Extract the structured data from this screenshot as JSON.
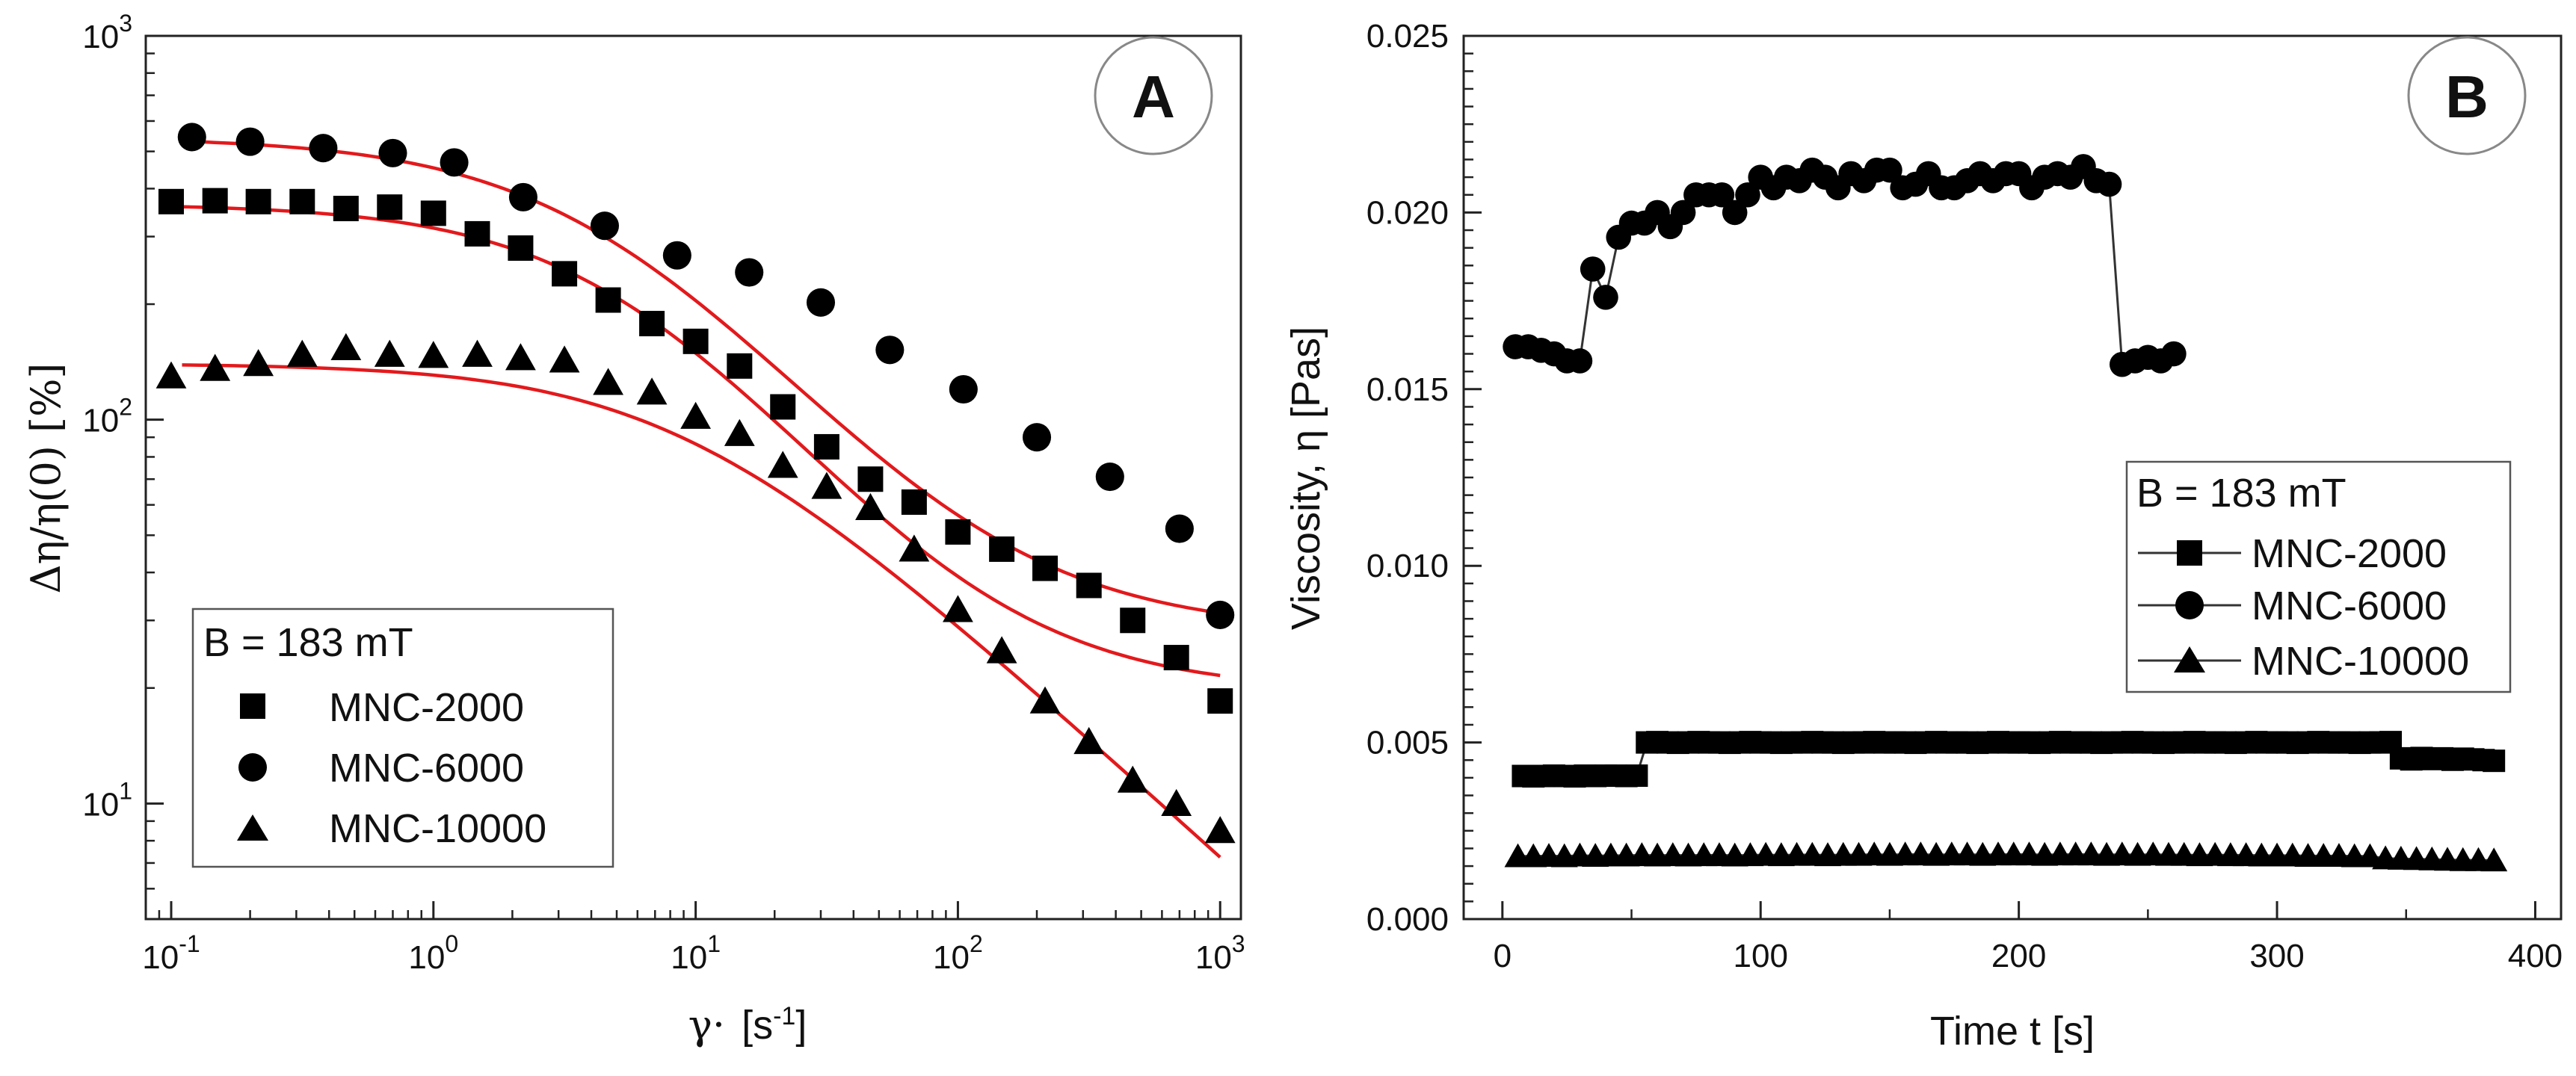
{
  "chart_data": [
    {
      "panel": "A",
      "type": "scatter",
      "x_scale": "log",
      "y_scale": "log",
      "xlim": [
        0.08,
        1200
      ],
      "ylim": [
        5,
        1000
      ],
      "xlabel_symbol": "γ·",
      "xlabel_unit": "[s",
      "xlabel_unit_sup": "-1",
      "xlabel_unit_close": "]",
      "ylabel": "Δη/η(0)  [%]",
      "x_ticks": [
        {
          "value": 0.1,
          "base": "10",
          "exp": "-1"
        },
        {
          "value": 1,
          "base": "10",
          "exp": "0"
        },
        {
          "value": 10,
          "base": "10",
          "exp": "1"
        },
        {
          "value": 100,
          "base": "10",
          "exp": "2"
        },
        {
          "value": 1000,
          "base": "10",
          "exp": "3"
        }
      ],
      "y_ticks": [
        {
          "value": 10,
          "base": "10",
          "exp": "1"
        },
        {
          "value": 100,
          "base": "10",
          "exp": "2"
        },
        {
          "value": 1000,
          "base": "10",
          "exp": "3"
        }
      ],
      "fit_color": "#e3191c",
      "legend": {
        "title": "B = 183 mT",
        "position": "bottom-left"
      },
      "series": [
        {
          "name": "MNC-2000",
          "marker": "square",
          "points": [
            [
              0.1,
              370
            ],
            [
              0.147,
              372
            ],
            [
              0.215,
              370
            ],
            [
              0.316,
              370
            ],
            [
              0.464,
              355
            ],
            [
              0.681,
              358
            ],
            [
              1.0,
              345
            ],
            [
              1.47,
              305
            ],
            [
              2.15,
              280
            ],
            [
              3.16,
              240
            ],
            [
              4.64,
              205
            ],
            [
              6.81,
              178
            ],
            [
              10.0,
              160
            ],
            [
              14.7,
              138
            ],
            [
              21.5,
              108
            ],
            [
              31.6,
              85
            ],
            [
              46.4,
              70
            ],
            [
              68.1,
              61
            ],
            [
              100,
              51
            ],
            [
              147,
              46
            ],
            [
              215,
              41
            ],
            [
              316,
              37
            ],
            [
              464,
              30
            ],
            [
              681,
              24
            ],
            [
              1000,
              18.5
            ]
          ],
          "fit": {
            "y0": 365,
            "yinf": 19.5,
            "gc": 6.0,
            "n": 1.0
          }
        },
        {
          "name": "MNC-6000",
          "marker": "circle",
          "points": [
            [
              0.12,
              545
            ],
            [
              0.2,
              530
            ],
            [
              0.38,
              510
            ],
            [
              0.7,
              495
            ],
            [
              1.2,
              468
            ],
            [
              2.2,
              380
            ],
            [
              4.5,
              320
            ],
            [
              8.5,
              268
            ],
            [
              16,
              242
            ],
            [
              30,
              202
            ],
            [
              55,
              152
            ],
            [
              105,
              120
            ],
            [
              200,
              90
            ],
            [
              380,
              71
            ],
            [
              700,
              52
            ],
            [
              1000,
              31
            ]
          ],
          "fit": {
            "y0": 545,
            "yinf": 28,
            "gc": 5.0,
            "n": 0.95
          }
        },
        {
          "name": "MNC-10000",
          "marker": "triangle",
          "points": [
            [
              0.1,
              130
            ],
            [
              0.147,
              136
            ],
            [
              0.215,
              140
            ],
            [
              0.316,
              148
            ],
            [
              0.464,
              154
            ],
            [
              0.681,
              148
            ],
            [
              1.0,
              147
            ],
            [
              1.47,
              148
            ],
            [
              2.15,
              145
            ],
            [
              3.16,
              143
            ],
            [
              4.64,
              125
            ],
            [
              6.81,
              118
            ],
            [
              10.0,
              102
            ],
            [
              14.7,
              92
            ],
            [
              21.5,
              76
            ],
            [
              31.6,
              67
            ],
            [
              46.4,
              59
            ],
            [
              68.1,
              46
            ],
            [
              100,
              32
            ],
            [
              147,
              25
            ],
            [
              215,
              18.5
            ],
            [
              316,
              14.5
            ],
            [
              464,
              11.5
            ],
            [
              681,
              10
            ],
            [
              1000,
              8.5
            ]
          ],
          "fit": {
            "y0": 140,
            "yinf": 0,
            "gc": 8.5,
            "n": 1.0,
            "b": 0.62
          }
        }
      ]
    },
    {
      "panel": "B",
      "type": "line",
      "xlim": [
        -15,
        410
      ],
      "ylim": [
        0,
        0.025
      ],
      "xlabel": "Time t [s]",
      "ylabel": "Viscosity, η [Pas]",
      "x_ticks": [
        "0",
        "100",
        "200",
        "300",
        "400"
      ],
      "y_ticks": [
        "0.000",
        "0.005",
        "0.010",
        "0.015",
        "0.020",
        "0.025"
      ],
      "legend": {
        "title": "B = 183 mT",
        "position": "right-middle"
      },
      "series": [
        {
          "name": "MNC-2000",
          "marker": "square",
          "x": [
            8,
            12,
            16,
            20,
            24,
            28,
            32,
            36,
            40,
            44,
            48,
            52,
            56,
            60,
            64,
            68,
            72,
            76,
            80,
            84,
            88,
            92,
            96,
            100,
            104,
            108,
            112,
            116,
            120,
            124,
            128,
            132,
            136,
            140,
            144,
            148,
            152,
            156,
            160,
            164,
            168,
            172,
            176,
            180,
            184,
            188,
            192,
            196,
            200,
            204,
            208,
            212,
            216,
            220,
            224,
            228,
            232,
            236,
            240,
            244,
            248,
            252,
            256,
            260,
            264,
            268,
            272,
            276,
            280,
            284,
            288,
            292,
            296,
            300,
            304,
            308,
            312,
            316,
            320,
            324,
            328,
            332,
            336,
            340,
            344,
            348,
            352,
            356,
            360,
            364,
            368,
            372,
            376,
            380,
            384
          ],
          "y": [
            0.00405,
            0.00404,
            0.00405,
            0.00406,
            0.00405,
            0.00404,
            0.00406,
            0.00405,
            0.00406,
            0.00406,
            0.00405,
            0.00406,
            0.005,
            0.00501,
            0.005,
            0.00499,
            0.005,
            0.00501,
            0.005,
            0.005,
            0.00499,
            0.005,
            0.00501,
            0.005,
            0.005,
            0.00499,
            0.005,
            0.005,
            0.00501,
            0.005,
            0.005,
            0.00499,
            0.005,
            0.005,
            0.00501,
            0.005,
            0.005,
            0.005,
            0.00499,
            0.005,
            0.00501,
            0.005,
            0.005,
            0.005,
            0.00499,
            0.005,
            0.00501,
            0.005,
            0.005,
            0.005,
            0.00499,
            0.005,
            0.00501,
            0.005,
            0.005,
            0.005,
            0.00499,
            0.005,
            0.005,
            0.00501,
            0.005,
            0.005,
            0.00499,
            0.005,
            0.005,
            0.00501,
            0.005,
            0.005,
            0.005,
            0.00499,
            0.005,
            0.00501,
            0.005,
            0.005,
            0.005,
            0.00499,
            0.005,
            0.00501,
            0.005,
            0.005,
            0.005,
            0.00499,
            0.005,
            0.005,
            0.00501,
            0.00455,
            0.00452,
            0.00456,
            0.00453,
            0.00455,
            0.00451,
            0.00454,
            0.00452,
            0.0045,
            0.00448
          ]
        },
        {
          "name": "MNC-6000",
          "marker": "circle",
          "x": [
            5,
            10,
            15,
            20,
            25,
            30,
            35,
            40,
            45,
            50,
            55,
            60,
            65,
            70,
            75,
            80,
            85,
            90,
            95,
            100,
            105,
            110,
            115,
            120,
            125,
            130,
            135,
            140,
            145,
            150,
            155,
            160,
            165,
            170,
            175,
            180,
            185,
            190,
            195,
            200,
            205,
            210,
            215,
            220,
            225,
            230,
            235,
            240,
            245,
            250,
            255,
            260
          ],
          "y": [
            0.0162,
            0.0162,
            0.0161,
            0.016,
            0.0158,
            0.0158,
            0.0184,
            0.0176,
            0.0193,
            0.0197,
            0.0197,
            0.02,
            0.0196,
            0.02,
            0.0205,
            0.0205,
            0.0205,
            0.02,
            0.0205,
            0.021,
            0.0207,
            0.021,
            0.0209,
            0.0212,
            0.021,
            0.0207,
            0.0211,
            0.0209,
            0.0212,
            0.0212,
            0.0207,
            0.0208,
            0.0211,
            0.0207,
            0.0207,
            0.0209,
            0.0211,
            0.0209,
            0.0211,
            0.0211,
            0.0207,
            0.021,
            0.0211,
            0.021,
            0.0213,
            0.0209,
            0.0208,
            0.0157,
            0.0158,
            0.0159,
            0.0158,
            0.016
          ]
        },
        {
          "name": "MNC-10000",
          "marker": "triangle",
          "x": [
            6,
            12,
            18,
            24,
            30,
            36,
            42,
            48,
            54,
            60,
            66,
            72,
            78,
            84,
            90,
            96,
            102,
            108,
            114,
            120,
            126,
            132,
            138,
            144,
            150,
            156,
            162,
            168,
            174,
            180,
            186,
            192,
            198,
            204,
            210,
            216,
            222,
            228,
            234,
            240,
            246,
            252,
            258,
            264,
            270,
            276,
            282,
            288,
            294,
            300,
            306,
            312,
            318,
            324,
            330,
            336,
            342,
            348,
            354,
            360,
            366,
            372,
            378,
            384
          ],
          "y": [
            0.00178,
            0.00178,
            0.00179,
            0.00178,
            0.0018,
            0.00179,
            0.0018,
            0.0018,
            0.00181,
            0.0018,
            0.00181,
            0.0018,
            0.00181,
            0.00181,
            0.0018,
            0.00181,
            0.00182,
            0.00181,
            0.00182,
            0.00182,
            0.00181,
            0.00182,
            0.00182,
            0.00183,
            0.00182,
            0.00183,
            0.00183,
            0.00182,
            0.00183,
            0.00183,
            0.00182,
            0.00183,
            0.00183,
            0.00183,
            0.00182,
            0.00183,
            0.00183,
            0.00183,
            0.00182,
            0.00183,
            0.00182,
            0.00183,
            0.00182,
            0.00182,
            0.00181,
            0.00182,
            0.00181,
            0.00181,
            0.0018,
            0.0018,
            0.0018,
            0.00179,
            0.00179,
            0.00179,
            0.00178,
            0.00178,
            0.00172,
            0.00171,
            0.0017,
            0.00169,
            0.00168,
            0.00167,
            0.00167,
            0.00166
          ]
        }
      ]
    }
  ]
}
